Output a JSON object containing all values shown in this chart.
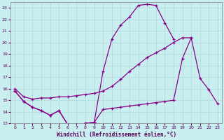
{
  "xlabel": "Windchill (Refroidissement éolien,°C)",
  "bg_color": "#c8eef0",
  "grid_color": "#b0d8dc",
  "line_color": "#880088",
  "xlim": [
    -0.5,
    23.5
  ],
  "ylim": [
    13,
    23.5
  ],
  "yticks": [
    13,
    14,
    15,
    16,
    17,
    18,
    19,
    20,
    21,
    22,
    23
  ],
  "xticks": [
    0,
    1,
    2,
    3,
    4,
    5,
    6,
    7,
    8,
    9,
    10,
    11,
    12,
    13,
    14,
    15,
    16,
    17,
    18,
    19,
    20,
    21,
    22,
    23
  ],
  "line1_x": [
    0,
    1,
    2,
    3,
    4,
    5,
    6,
    7,
    8,
    9,
    10,
    11,
    12,
    13,
    14,
    15,
    16,
    17,
    18,
    19,
    20,
    21,
    22,
    23
  ],
  "line1_y": [
    15.8,
    14.9,
    14.4,
    14.1,
    13.7,
    14.1,
    12.9,
    12.9,
    13.0,
    13.1,
    17.5,
    20.3,
    21.5,
    22.2,
    23.2,
    23.3,
    23.2,
    21.7,
    20.3,
    null,
    null,
    null,
    null,
    null
  ],
  "line2_x": [
    0,
    1,
    2,
    3,
    4,
    5,
    6,
    7,
    8,
    9,
    10,
    11,
    12,
    13,
    14,
    15,
    16,
    17,
    18,
    19,
    20,
    21,
    22,
    23
  ],
  "line2_y": [
    16.0,
    15.3,
    15.1,
    15.2,
    15.2,
    15.3,
    15.3,
    15.4,
    15.5,
    15.6,
    15.8,
    16.2,
    16.8,
    17.5,
    18.1,
    18.7,
    19.1,
    19.5,
    20.0,
    20.4,
    20.4,
    null,
    null,
    null
  ],
  "line3_x": [
    0,
    1,
    2,
    3,
    4,
    5,
    6,
    7,
    8,
    9,
    10,
    11,
    12,
    13,
    14,
    15,
    16,
    17,
    18,
    19,
    20,
    21,
    22,
    23
  ],
  "line3_y": [
    15.8,
    14.9,
    14.4,
    14.1,
    13.7,
    14.1,
    12.9,
    12.9,
    13.0,
    13.1,
    14.2,
    14.3,
    14.4,
    14.5,
    14.6,
    14.7,
    14.8,
    14.9,
    15.0,
    18.6,
    20.4,
    16.9,
    15.9,
    14.7
  ]
}
